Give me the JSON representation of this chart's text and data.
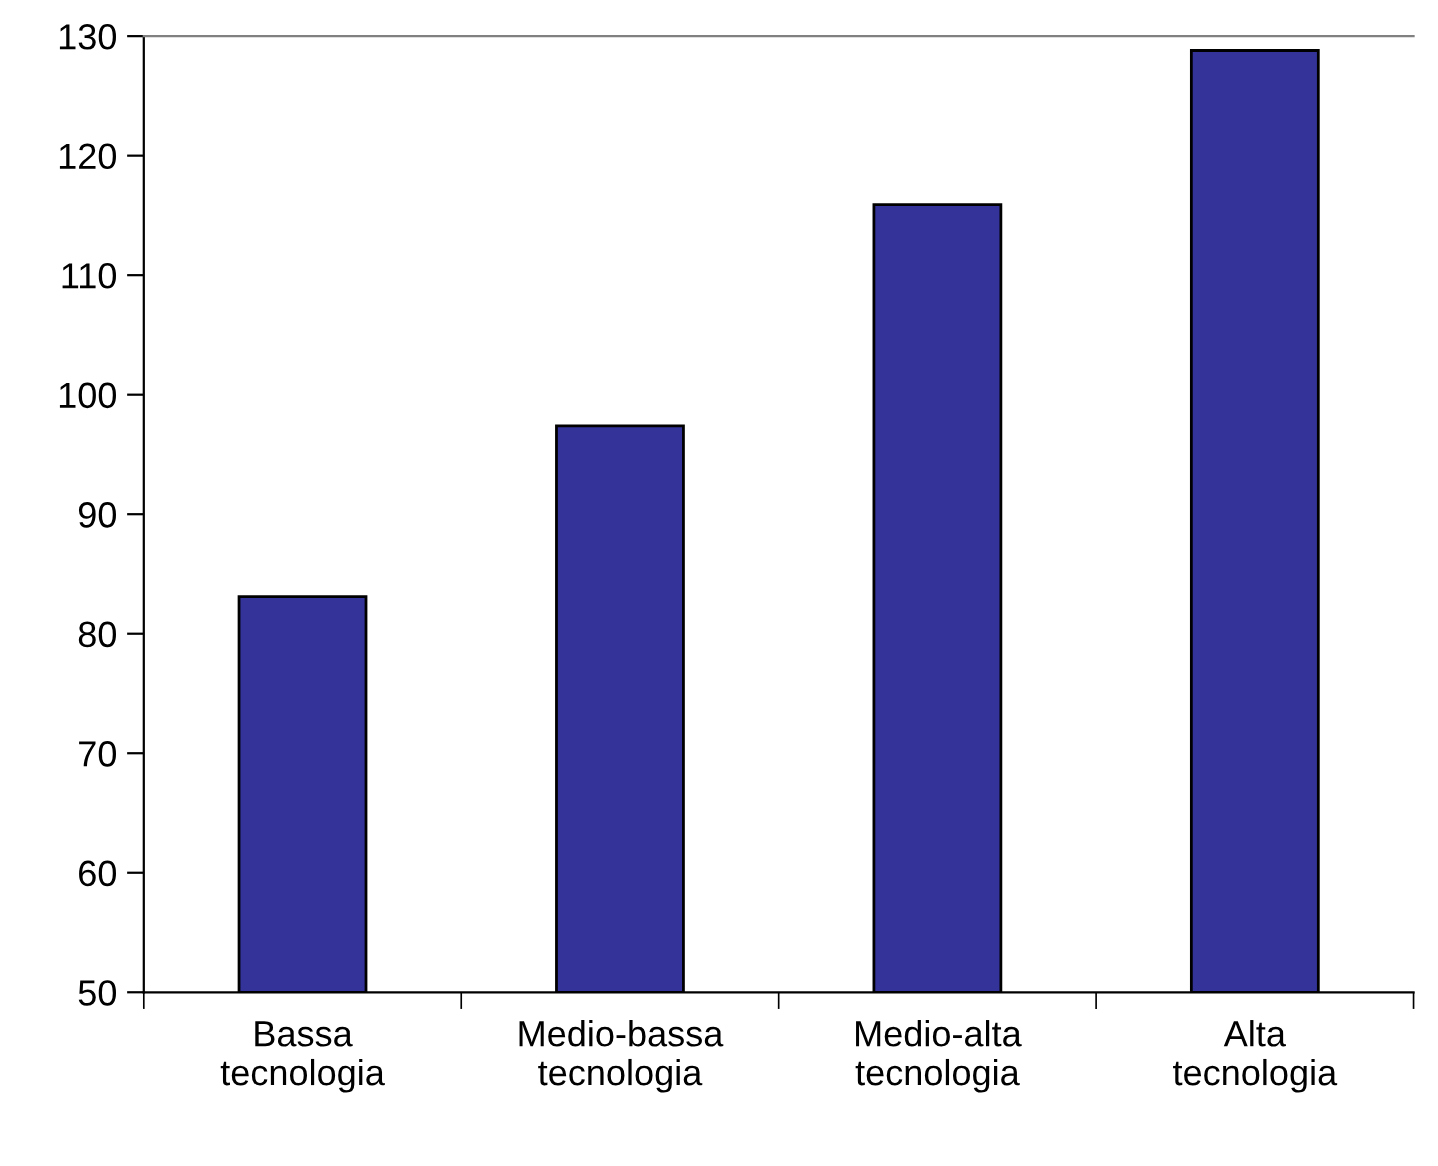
{
  "chart_data": {
    "type": "bar",
    "categories": [
      "Bassa\ntecnologia",
      "Medio-bassa\ntecnologia",
      "Medio-alta\ntecnologia",
      "Alta\ntecnologia"
    ],
    "values": [
      83.1,
      97.4,
      115.9,
      128.8
    ],
    "color": "#333399",
    "ylim": [
      50,
      130
    ],
    "yticks": [
      50,
      60,
      70,
      80,
      90,
      100,
      110,
      120,
      130
    ],
    "grid": false,
    "legend": false
  }
}
